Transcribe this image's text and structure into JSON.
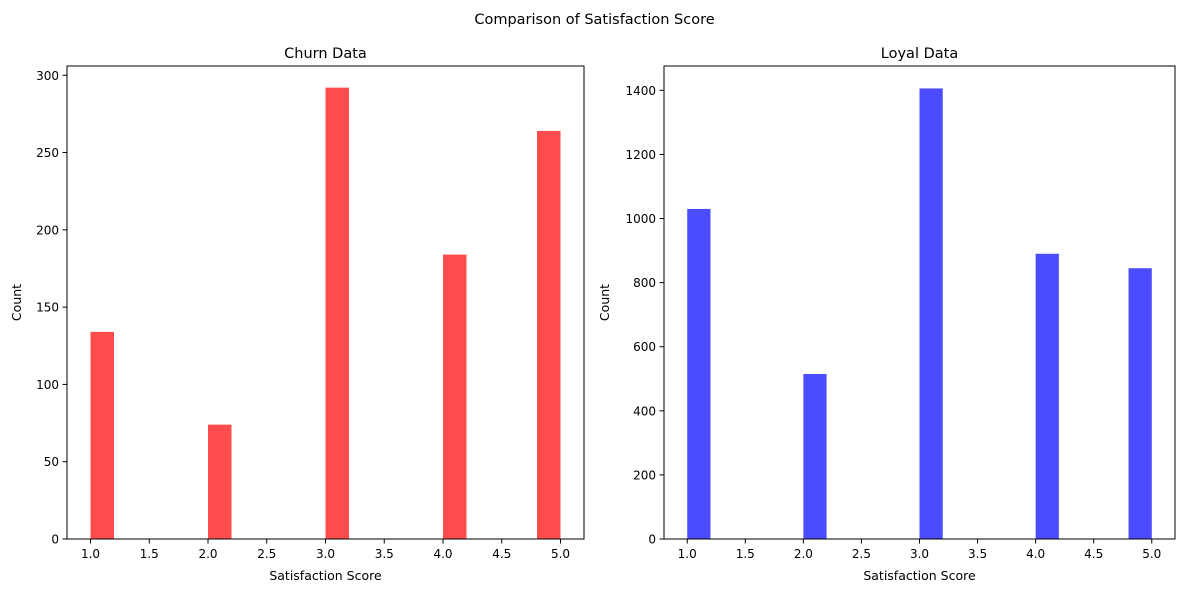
{
  "figure": {
    "suptitle": "Comparison of Satisfaction Score"
  },
  "chart_data": [
    {
      "type": "bar",
      "title": "Churn Data",
      "xlabel": "Satisfaction Score",
      "ylabel": "Count",
      "color": "#ff4c4c",
      "bar_width": 0.2,
      "x": [
        1.0,
        2.0,
        3.0,
        4.0,
        4.8
      ],
      "values": [
        134,
        74,
        292,
        184,
        264
      ],
      "xlim": [
        0.8,
        5.2
      ],
      "ylim": [
        0,
        306
      ],
      "xticks": [
        1.0,
        1.5,
        2.0,
        2.5,
        3.0,
        3.5,
        4.0,
        4.5,
        5.0
      ],
      "xtick_labels": [
        "1.0",
        "1.5",
        "2.0",
        "2.5",
        "3.0",
        "3.5",
        "4.0",
        "4.5",
        "5.0"
      ],
      "yticks": [
        0,
        50,
        100,
        150,
        200,
        250,
        300
      ],
      "ytick_labels": [
        "0",
        "50",
        "100",
        "150",
        "200",
        "250",
        "300"
      ],
      "grid": false,
      "legend": "none"
    },
    {
      "type": "bar",
      "title": "Loyal Data",
      "xlabel": "Satisfaction Score",
      "ylabel": "Count",
      "color": "#4c4cff",
      "bar_width": 0.2,
      "x": [
        1.0,
        2.0,
        3.0,
        4.0,
        4.8
      ],
      "values": [
        1030,
        515,
        1406,
        890,
        845
      ],
      "xlim": [
        0.8,
        5.2
      ],
      "ylim": [
        0,
        1476
      ],
      "xticks": [
        1.0,
        1.5,
        2.0,
        2.5,
        3.0,
        3.5,
        4.0,
        4.5,
        5.0
      ],
      "xtick_labels": [
        "1.0",
        "1.5",
        "2.0",
        "2.5",
        "3.0",
        "3.5",
        "4.0",
        "4.5",
        "5.0"
      ],
      "yticks": [
        0,
        200,
        400,
        600,
        800,
        1000,
        1200,
        1400
      ],
      "ytick_labels": [
        "0",
        "200",
        "400",
        "600",
        "800",
        "1000",
        "1200",
        "1400"
      ],
      "grid": false,
      "legend": "none"
    }
  ]
}
